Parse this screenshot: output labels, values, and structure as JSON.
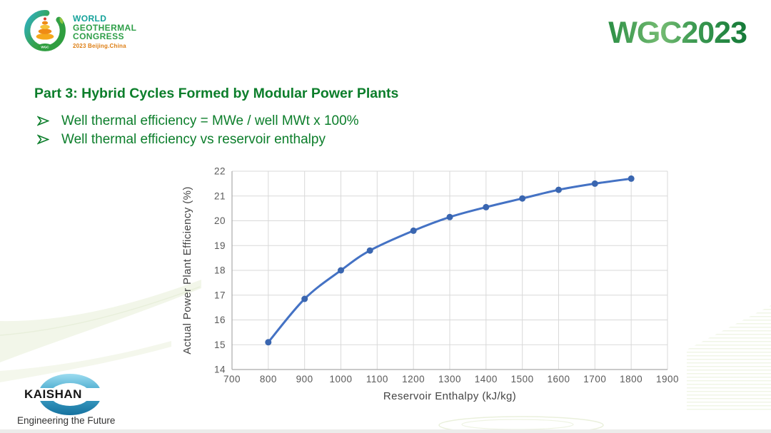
{
  "header": {
    "logo": {
      "line1": "WORLD",
      "line2": "GEOTHERMAL",
      "line3": "CONGRESS",
      "subtitle": "2023 Beijing.China",
      "badge": "WGC"
    },
    "conference_code": "WGC2023"
  },
  "slide": {
    "title": "Part 3: Hybrid Cycles Formed by Modular Power Plants",
    "bullet_glyph": "➢",
    "bullets": [
      "Well thermal efficiency = MWe / well MWt x 100%",
      "Well thermal efficiency vs reservoir enthalpy"
    ]
  },
  "chart_data": {
    "type": "line",
    "title": "",
    "xlabel": "Reservoir Enthalpy (kJ/kg)",
    "ylabel": "Actual Power Plant Efficiency (%)",
    "xlim": [
      700,
      1900
    ],
    "ylim": [
      14,
      22
    ],
    "x_ticks": [
      700,
      800,
      900,
      1000,
      1100,
      1200,
      1300,
      1400,
      1500,
      1600,
      1700,
      1800,
      1900
    ],
    "y_ticks": [
      14,
      15,
      16,
      17,
      18,
      19,
      20,
      21,
      22
    ],
    "grid": true,
    "legend": "none",
    "series": [
      {
        "name": "Actual Power Plant Efficiency",
        "x": [
          800,
          900,
          1000,
          1080,
          1200,
          1300,
          1400,
          1500,
          1600,
          1700,
          1800
        ],
        "y": [
          15.1,
          16.85,
          18.0,
          18.8,
          19.6,
          20.15,
          20.55,
          20.9,
          21.25,
          21.5,
          21.7
        ]
      }
    ]
  },
  "footer": {
    "logo_text": "KAISHAN",
    "tagline": "Engineering the Future"
  },
  "colors": {
    "accent_green": "#0c7e2b",
    "wgc_green_dark": "#157a38",
    "wgc_green_light": "#74bb72",
    "line": "#4472C4",
    "marker": "#3a66b0",
    "grid": "#d9d9d9",
    "axis": "#ababab",
    "tick_text": "#595959"
  }
}
